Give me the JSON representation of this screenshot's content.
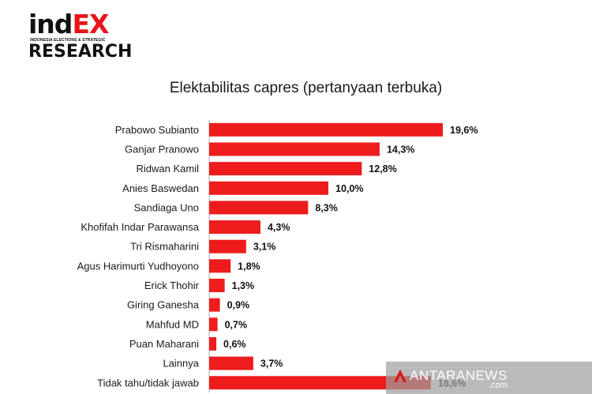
{
  "logo": {
    "line1_part1": "ind",
    "line1_part2": "EX",
    "tagline": "INDONESIA ELECTIONS & STRATEGIC",
    "line2": "RESEARCH"
  },
  "watermark": {
    "main": "ANTARANEWS",
    "sub": ".com"
  },
  "colors": {
    "bar": "#ee1c1c",
    "brand_red": "#e8141a",
    "text": "#1a1a1a"
  },
  "chart_data": {
    "type": "bar",
    "orientation": "horizontal",
    "title": "Elektabilitas capres (pertanyaan terbuka)",
    "xlabel": "",
    "ylabel": "",
    "unit": "%",
    "xlim": [
      0,
      19.6
    ],
    "grid": false,
    "legend": "none",
    "categories": [
      "Prabowo Subianto",
      "Ganjar Pranowo",
      "Ridwan Kamil",
      "Anies Baswedan",
      "Sandiaga Uno",
      "Khofifah Indar Parawansa",
      "Tri Rismaharini",
      "Agus Harimurti Yudhoyono",
      "Erick Thohir",
      "Giring Ganesha",
      "Mahfud MD",
      "Puan Maharani",
      "Lainnya",
      "Tidak tahu/tidak jawab"
    ],
    "values": [
      19.6,
      14.3,
      12.8,
      10.0,
      8.3,
      4.3,
      3.1,
      1.8,
      1.3,
      0.9,
      0.7,
      0.6,
      3.7,
      18.6
    ],
    "data_labels": [
      "19,6%",
      "14,3%",
      "12,8%",
      "10,0%",
      "8,3%",
      "4,3%",
      "3,1%",
      "1,8%",
      "1,3%",
      "0,9%",
      "0,7%",
      "0,6%",
      "3,7%",
      "18,6%"
    ]
  }
}
